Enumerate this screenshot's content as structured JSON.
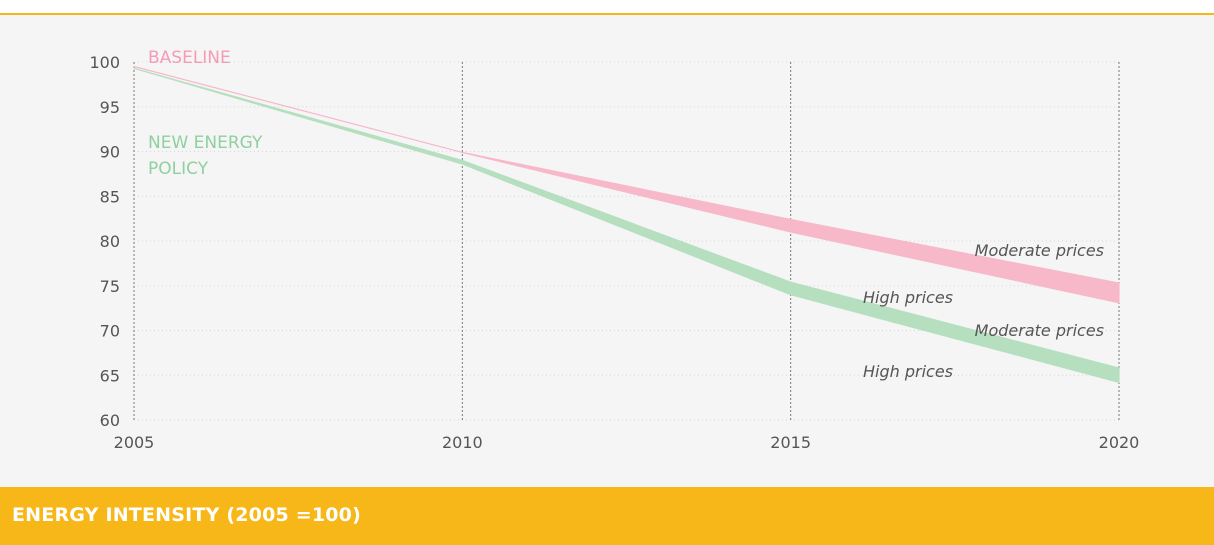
{
  "chart_data": {
    "type": "area",
    "title": "ENERGY INTENSITY (2005 =100)",
    "xlim": [
      2005,
      2020
    ],
    "ylim": [
      60,
      100
    ],
    "xticks": [
      "2005",
      "2010",
      "2015",
      "2020"
    ],
    "yticks": [
      "60",
      "65",
      "70",
      "75",
      "80",
      "85",
      "90",
      "95",
      "100"
    ],
    "grid": {
      "vertical": true,
      "horizontal": true,
      "style": "dotted"
    },
    "series": [
      {
        "name": "BASELINE",
        "color": "#f7b8ca",
        "label_color": "#f59bb6",
        "x": [
          2005,
          2010,
          2015,
          2020
        ],
        "upper": [
          99.5,
          89.9,
          82.4,
          75.3
        ],
        "lower": [
          99.5,
          89.9,
          81.0,
          73.1
        ],
        "upper_label": "Moderate prices",
        "lower_label": "High prices"
      },
      {
        "name": "NEW ENERGY POLICY",
        "name_lines": [
          "NEW ENERGY",
          "POLICY"
        ],
        "color": "#b5dfbf",
        "label_color": "#8fd0a0",
        "x": [
          2005,
          2010,
          2015,
          2020
        ],
        "upper": [
          99.3,
          89.0,
          75.4,
          65.8
        ],
        "lower": [
          99.3,
          88.6,
          74.0,
          64.2
        ],
        "upper_label": "Moderate prices",
        "lower_label": "High prices"
      }
    ]
  }
}
